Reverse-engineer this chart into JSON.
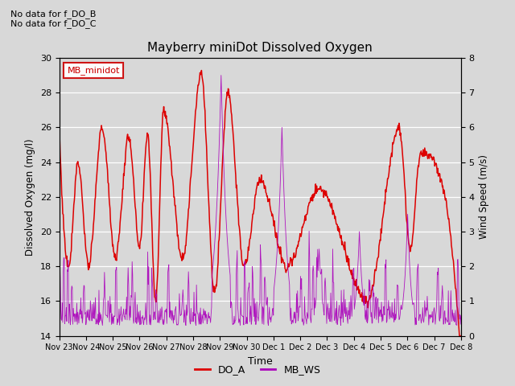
{
  "title": "Mayberry miniDot Dissolved Oxygen",
  "xlabel": "Time",
  "ylabel_left": "Dissolved Oxygen (mg/l)",
  "ylabel_right": "Wind Speed (m/s)",
  "ylim_left": [
    14,
    30
  ],
  "ylim_right": [
    0.0,
    8.0
  ],
  "yticks_left": [
    14,
    16,
    18,
    20,
    22,
    24,
    26,
    28,
    30
  ],
  "yticks_right": [
    0.0,
    1.0,
    2.0,
    3.0,
    4.0,
    5.0,
    6.0,
    7.0,
    8.0
  ],
  "no_data_texts": [
    "No data for f_DO_B",
    "No data for f_DO_C"
  ],
  "legend_box_label": "MB_minidot",
  "legend_items": [
    "DO_A",
    "MB_WS"
  ],
  "do_color": "#dd0000",
  "ws_color": "#aa00bb",
  "bg_color": "#d8d8d8",
  "grid_color": "#ffffff",
  "x_tick_labels": [
    "Nov 23",
    "Nov 24",
    "Nov 25",
    "Nov 26",
    "Nov 27",
    "Nov 28",
    "Nov 29",
    "Nov 30",
    "Dec 1",
    "Dec 2",
    "Dec 3",
    "Dec 4",
    "Dec 5",
    "Dec 6",
    "Dec 7",
    "Dec 8"
  ],
  "do_peaks_t": [
    0.0,
    0.7,
    1.6,
    2.6,
    3.3,
    3.9,
    5.3,
    6.3,
    7.5,
    9.7,
    12.7,
    13.5
  ],
  "do_troughs_t": [
    0.35,
    1.1,
    2.1,
    3.0,
    3.6,
    4.6,
    5.8,
    6.9,
    8.5,
    11.5,
    13.1,
    14.5
  ],
  "do_peak_vals": [
    26,
    24,
    26,
    25.5,
    25.7,
    27,
    29.2,
    28.1,
    23,
    22.5,
    26,
    24.5
  ],
  "do_trough_vals": [
    18,
    18,
    18.5,
    19,
    16,
    18.5,
    16.5,
    18,
    18,
    16,
    19,
    21
  ],
  "n_points": 800
}
